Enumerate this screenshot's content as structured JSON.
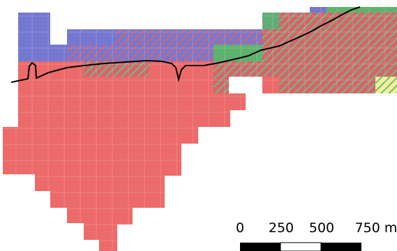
{
  "colors": {
    "red_zone": "#ec6a6a",
    "blue_zone": "#7578d1",
    "green_zone": "#5fb26e",
    "yellow_zone": "#f2ee9a",
    "hatch_red": "#d9626d",
    "hatch_green": "#6fbf74",
    "boundary_line": "#000000",
    "grid_line": "#f49d9d"
  },
  "legend_patterns": {
    "red_over_blue": "diagonal-hatch",
    "green_over_red": "diagonal-hatch"
  },
  "scale_bar": {
    "labels": [
      "0",
      "250",
      "500",
      "750 m"
    ],
    "segments": [
      "black",
      "white",
      "black"
    ]
  }
}
